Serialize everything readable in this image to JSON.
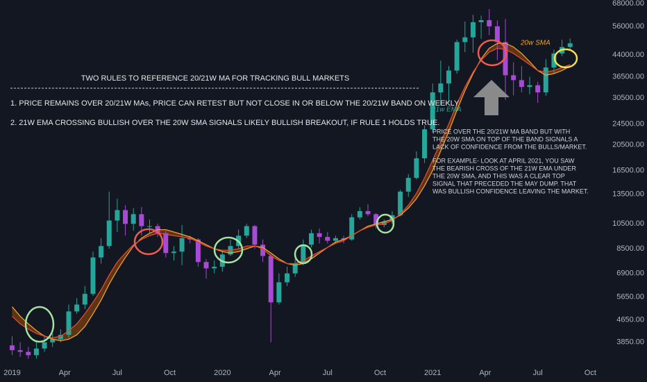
{
  "chart_data": {
    "type": "candlestick",
    "title": "TWO RULES TO REFERENCE 20/21W MA FOR TRACKING BULL MARKETS",
    "annotations": {
      "rules": [
        "1. PRICE REMAINS OVER 20/21W MAs, PRICE CAN RETEST BUT NOT CLOSE IN OR BELOW THE 20/21W BAND ON WEEKLY",
        "2. 21W EMA CROSSING BULLISH OVER THE 20W  SMA SIGNALS LIKELY BULLISH BREAKOUT, IF RULE 1 HOLDS TRUE."
      ],
      "note_1": [
        "PRICE OVER THE 20/21W MA BAND BUT WITH",
        "THE 20W SMA ON TOP OF THE BAND SIGNALS A",
        "LACK OF CONFIDENCE FROM THE BULLS/MARKET."
      ],
      "note_2": [
        "FOR EXAMPLE- LOOK AT APRIL 2021, YOU SAW",
        "THE BEARISH CROSS OF THE 21W EMA UNDER",
        "THE 20W SMA, AND THIS WAS A CLEAR TOP",
        "SIGNAL THAT PRECEDED THE MAY DUMP. THAT",
        "WAS BULLISH CONFIDENCE LEAVING THE MARKET."
      ]
    },
    "up_color": "#26a69a",
    "down_color": "#a64bd3",
    "band_color": "#6b3a12",
    "log_scale": true,
    "x": [
      0,
      2,
      4,
      6,
      8,
      10,
      12,
      14,
      16,
      18,
      20,
      22,
      24,
      26,
      28,
      30,
      32,
      34,
      36,
      38,
      40,
      42,
      44,
      46,
      48,
      50,
      52,
      54,
      56,
      58,
      60,
      62,
      64,
      66,
      68,
      70,
      72,
      74,
      76,
      78,
      80,
      82,
      84,
      86,
      88,
      90,
      92,
      94,
      96,
      98,
      100,
      102,
      104,
      106,
      108,
      110,
      112,
      114,
      116,
      118,
      120,
      122,
      124,
      126,
      128,
      130,
      132,
      134,
      136,
      138
    ],
    "open": [
      3750,
      3600,
      3550,
      3450,
      3650,
      3850,
      3950,
      4100,
      5000,
      5300,
      5800,
      7900,
      8700,
      10800,
      11800,
      10500,
      11400,
      10300,
      10300,
      9700,
      8200,
      8300,
      9300,
      9200,
      7600,
      7200,
      7300,
      8100,
      8700,
      9500,
      10300,
      8800,
      8000,
      5400,
      6400,
      6900,
      7500,
      8800,
      9700,
      9400,
      9100,
      9300,
      9200,
      11100,
      11700,
      11400,
      10400,
      10700,
      11300,
      13800,
      15500,
      18300,
      23400,
      32000,
      34500,
      38500,
      49000,
      51000,
      58000,
      59000,
      56000,
      49000,
      37000,
      35500,
      33500,
      34000,
      32000,
      39500,
      44500,
      47000
    ],
    "high": [
      4050,
      3850,
      3700,
      3900,
      4100,
      4150,
      4300,
      5300,
      5600,
      6200,
      8300,
      9300,
      13800,
      13000,
      12300,
      12000,
      12100,
      10900,
      10500,
      9900,
      8700,
      10400,
      9500,
      9300,
      7800,
      7700,
      8400,
      9200,
      10000,
      10500,
      10400,
      9200,
      8100,
      6900,
      7300,
      7800,
      9200,
      10000,
      10100,
      9800,
      9500,
      9500,
      11400,
      12100,
      12400,
      11500,
      10900,
      11700,
      14000,
      16000,
      19400,
      24200,
      34500,
      41900,
      40000,
      50000,
      58300,
      61700,
      61300,
      64800,
      58900,
      59600,
      41300,
      40000,
      36500,
      35000,
      42400,
      46000,
      50000,
      50500
    ],
    "low": [
      3450,
      3400,
      3350,
      3350,
      3550,
      3700,
      3850,
      4000,
      4900,
      5100,
      5700,
      7500,
      8500,
      9800,
      9500,
      9900,
      9500,
      9700,
      9400,
      7900,
      7700,
      7400,
      8900,
      7300,
      6600,
      6900,
      7000,
      8000,
      8500,
      9300,
      8500,
      7600,
      3850,
      5300,
      6200,
      6700,
      7400,
      8600,
      8900,
      8900,
      8900,
      8900,
      9100,
      10900,
      11200,
      10100,
      10200,
      10500,
      11200,
      13200,
      15300,
      17600,
      22800,
      28800,
      29300,
      37500,
      45000,
      44800,
      50400,
      52000,
      42000,
      30000,
      31200,
      32000,
      31500,
      29300,
      31000,
      37500,
      43500,
      46000
    ],
    "close": [
      3600,
      3550,
      3450,
      3650,
      3850,
      3950,
      4100,
      5000,
      5300,
      5800,
      7900,
      8700,
      10800,
      11800,
      10500,
      11400,
      10300,
      10300,
      9700,
      8200,
      8300,
      9300,
      9200,
      7600,
      7200,
      7300,
      8100,
      8700,
      9500,
      10300,
      8800,
      8000,
      5400,
      6400,
      6900,
      7500,
      8800,
      9700,
      9400,
      9100,
      9300,
      9200,
      11100,
      11700,
      11400,
      10400,
      10700,
      11300,
      13800,
      15500,
      18300,
      23400,
      32000,
      34500,
      38500,
      49000,
      51000,
      58000,
      59000,
      56000,
      49000,
      37000,
      35500,
      33500,
      34000,
      32000,
      39500,
      44500,
      47000,
      48500
    ],
    "series": [
      {
        "name": "20w SMA",
        "color": "#f0a030",
        "values": [
          5200,
          4800,
          4500,
          4250,
          4050,
          3950,
          3900,
          3950,
          4100,
          4400,
          4900,
          5500,
          6300,
          7100,
          7900,
          8700,
          9300,
          9700,
          10000,
          10000,
          9800,
          9600,
          9400,
          9100,
          8800,
          8500,
          8300,
          8200,
          8300,
          8500,
          8700,
          8600,
          8200,
          7800,
          7500,
          7400,
          7500,
          7800,
          8200,
          8600,
          9000,
          9200,
          9500,
          9900,
          10300,
          10500,
          10700,
          10900,
          11300,
          12000,
          13000,
          14500,
          16500,
          19500,
          23000,
          27500,
          32500,
          37500,
          42500,
          46500,
          48500,
          48500,
          47000,
          44500,
          41500,
          38500,
          37000,
          37500,
          38500,
          40000
        ]
      },
      {
        "name": "21w EMA",
        "color": "#e04a30",
        "values": [
          4800,
          4500,
          4300,
          4150,
          4050,
          4000,
          4050,
          4250,
          4500,
          4900,
          5400,
          6000,
          6800,
          7600,
          8200,
          8800,
          9200,
          9500,
          9700,
          9600,
          9500,
          9400,
          9300,
          9000,
          8700,
          8500,
          8400,
          8400,
          8500,
          8700,
          8700,
          8500,
          8000,
          7700,
          7500,
          7500,
          7700,
          8000,
          8300,
          8600,
          8900,
          9100,
          9500,
          9900,
          10200,
          10400,
          10500,
          10800,
          11400,
          12300,
          13600,
          15500,
          18000,
          21000,
          24500,
          29000,
          33500,
          38000,
          42000,
          45000,
          46500,
          46000,
          44500,
          42500,
          40500,
          38500,
          38000,
          38500,
          39500,
          40500
        ]
      }
    ],
    "xlim": [
      -3,
      145
    ],
    "xticks": [
      {
        "value": 0,
        "label": "2019"
      },
      {
        "value": 13,
        "label": "Apr"
      },
      {
        "value": 26,
        "label": "Jul"
      },
      {
        "value": 39,
        "label": "Oct"
      },
      {
        "value": 52,
        "label": "2020"
      },
      {
        "value": 65,
        "label": "Apr"
      },
      {
        "value": 78,
        "label": "Jul"
      },
      {
        "value": 91,
        "label": "Oct"
      },
      {
        "value": 104,
        "label": "2021"
      },
      {
        "value": 117,
        "label": "Apr"
      },
      {
        "value": 130,
        "label": "Jul"
      },
      {
        "value": 143,
        "label": "Oct"
      }
    ],
    "ylim": [
      3280,
      70000
    ],
    "yticks": [
      {
        "value": 68000,
        "label": "68000.00"
      },
      {
        "value": 56000,
        "label": "56000.00"
      },
      {
        "value": 44000,
        "label": "44000.00"
      },
      {
        "value": 36500,
        "label": "36500.00"
      },
      {
        "value": 30500,
        "label": "30500.00"
      },
      {
        "value": 24500,
        "label": "24500.00"
      },
      {
        "value": 20500,
        "label": "20500.00"
      },
      {
        "value": 16500,
        "label": "16500.00"
      },
      {
        "value": 13500,
        "label": "13500.00"
      },
      {
        "value": 10500,
        "label": "10500.00"
      },
      {
        "value": 8500,
        "label": "8500.00"
      },
      {
        "value": 6900,
        "label": "6900.00"
      },
      {
        "value": 5650,
        "label": "5650.00"
      },
      {
        "value": 4650,
        "label": "4650.00"
      },
      {
        "value": 3850,
        "label": "3850.00"
      }
    ]
  }
}
